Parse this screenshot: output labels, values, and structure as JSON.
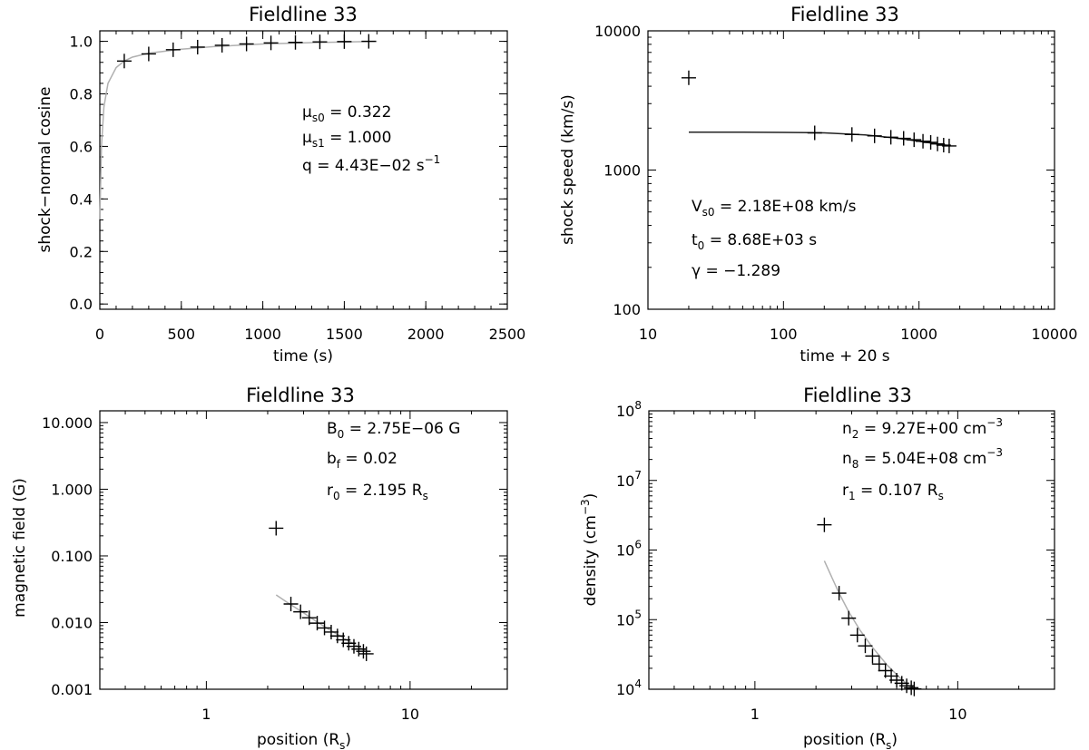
{
  "chart_data": [
    {
      "id": "cosine",
      "type": "scatter",
      "title": "Fieldline 33",
      "xlabel": "time (s)",
      "ylabel": "shock−normal cosine",
      "xscale": "linear",
      "yscale": "linear",
      "xlim": [
        0,
        2500
      ],
      "ylim": [
        -0.02,
        1.04
      ],
      "xticks": [
        0,
        500,
        1000,
        1500,
        2000,
        2500
      ],
      "xtick_labels": [
        "0",
        "500",
        "1000",
        "1500",
        "2000",
        "2500"
      ],
      "yticks": [
        0.0,
        0.2,
        0.4,
        0.6,
        0.8,
        1.0
      ],
      "ytick_labels": [
        "0.0",
        "0.2",
        "0.4",
        "0.6",
        "0.8",
        "1.0"
      ],
      "grid": false,
      "points": {
        "x": [
          150,
          300,
          450,
          600,
          750,
          900,
          1050,
          1200,
          1350,
          1500,
          1650
        ],
        "y": [
          0.925,
          0.952,
          0.968,
          0.978,
          0.985,
          0.99,
          0.994,
          0.996,
          0.998,
          0.999,
          1.0
        ]
      },
      "fit": {
        "color": "#b0b0b0",
        "x": [
          0,
          10,
          25,
          50,
          100,
          150,
          200,
          300,
          500,
          700,
          1000,
          1300,
          1700
        ],
        "y": [
          0.322,
          0.6,
          0.75,
          0.84,
          0.9,
          0.925,
          0.94,
          0.955,
          0.97,
          0.98,
          0.99,
          0.995,
          1.0
        ]
      },
      "annotations": [
        {
          "sym": "μ",
          "sub": "s0",
          "text": " =    0.322"
        },
        {
          "sym": "μ",
          "sub": "s1",
          "text": " =    1.000"
        },
        {
          "sym": "q",
          "text": " = 4.43E−02 s",
          "sup": "−1"
        }
      ]
    },
    {
      "id": "speed",
      "type": "scatter",
      "title": "Fieldline 33",
      "xlabel": "time + 20 s",
      "ylabel": "shock speed (km/s)",
      "xscale": "log",
      "yscale": "log",
      "xlim": [
        10,
        10000
      ],
      "ylim": [
        100,
        10000
      ],
      "xticks": [
        10,
        100,
        1000,
        10000
      ],
      "xtick_labels": [
        "10",
        "100",
        "1000",
        "10000"
      ],
      "yticks": [
        100,
        1000,
        10000
      ],
      "ytick_labels": [
        "100",
        "1000",
        "10000"
      ],
      "grid": false,
      "points": {
        "x": [
          20,
          170,
          320,
          470,
          620,
          770,
          920,
          1070,
          1220,
          1370,
          1520,
          1670
        ],
        "y": [
          4600,
          1850,
          1800,
          1760,
          1720,
          1690,
          1650,
          1610,
          1580,
          1540,
          1510,
          1490
        ]
      },
      "fit": {
        "color": "#222222",
        "x": [
          20,
          50,
          100,
          200,
          400,
          700,
          1000,
          1300,
          1700
        ],
        "y": [
          1870,
          1870,
          1865,
          1850,
          1790,
          1690,
          1610,
          1550,
          1490
        ]
      },
      "annotations": [
        {
          "sym": "V",
          "sub": "s0",
          "text": " = 2.18E+08 km/s"
        },
        {
          "sym": "t",
          "sub": "0",
          "text": " = 8.68E+03 s"
        },
        {
          "sym": "γ",
          "text": "  =  −1.289"
        }
      ]
    },
    {
      "id": "field",
      "type": "scatter",
      "title": "Fieldline 33",
      "xlabel": "position (R",
      "xlabel_sub": "s",
      "xlabel_tail": ")",
      "ylabel": "magnetic field (G)",
      "xscale": "log",
      "yscale": "log",
      "xlim": [
        0.3,
        30
      ],
      "ylim": [
        0.001,
        15
      ],
      "xticks": [
        1,
        10
      ],
      "xtick_labels": [
        "1",
        "10"
      ],
      "yticks": [
        0.001,
        0.01,
        0.1,
        1,
        10
      ],
      "ytick_labels": [
        "0.001",
        "0.010",
        "0.100",
        "1.000",
        "10.000"
      ],
      "grid": false,
      "points": {
        "x": [
          2.2,
          2.6,
          2.9,
          3.2,
          3.5,
          3.8,
          4.1,
          4.4,
          4.7,
          5.0,
          5.3,
          5.6,
          5.9,
          6.1
        ],
        "y": [
          0.26,
          0.019,
          0.0145,
          0.0118,
          0.0098,
          0.0083,
          0.0072,
          0.0063,
          0.0055,
          0.0049,
          0.0044,
          0.004,
          0.0037,
          0.0034
        ]
      },
      "fit": {
        "color": "#b0b0b0",
        "x": [
          2.2,
          2.5,
          3.0,
          3.5,
          4.0,
          5.0,
          6.0
        ],
        "y": [
          0.026,
          0.02,
          0.014,
          0.0102,
          0.0079,
          0.0053,
          0.0038
        ]
      },
      "annotations": [
        {
          "sym": "B",
          "sub": "0",
          "text": " = 2.75E−06 G"
        },
        {
          "sym": "b",
          "sub": "f",
          "text": " =    0.02"
        },
        {
          "sym": "r",
          "sub": "0",
          "text": " =   2.195 R",
          "tail_sub": "s"
        }
      ]
    },
    {
      "id": "density",
      "type": "scatter",
      "title": "Fieldline 33",
      "xlabel": "position (R",
      "xlabel_sub": "s",
      "xlabel_tail": ")",
      "ylabel": "density (cm",
      "ylabel_sup": "−3",
      "ylabel_tail": ")",
      "xscale": "log",
      "yscale": "log",
      "xlim": [
        0.3,
        30
      ],
      "ylim": [
        10000,
        100000000
      ],
      "xticks": [
        1,
        10
      ],
      "xtick_labels": [
        "1",
        "10"
      ],
      "yticks": [
        10000,
        100000,
        1000000,
        10000000,
        100000000
      ],
      "ytick_base": "10",
      "ytick_exps": [
        "4",
        "5",
        "6",
        "7",
        "8"
      ],
      "grid": false,
      "points": {
        "x": [
          2.2,
          2.6,
          2.9,
          3.2,
          3.5,
          3.8,
          4.1,
          4.4,
          4.7,
          5.0,
          5.3,
          5.6,
          5.9,
          6.1
        ],
        "y": [
          2300000,
          240000,
          105000,
          60000,
          42000,
          30000,
          23000,
          18500,
          15500,
          13500,
          12200,
          11200,
          10500,
          10100
        ]
      },
      "fit": {
        "color": "#b0b0b0",
        "x": [
          2.2,
          2.4,
          2.6,
          2.9,
          3.3,
          3.8,
          4.5,
          5.2,
          6.0
        ],
        "y": [
          700000,
          400000,
          240000,
          130000,
          70000,
          40000,
          22000,
          14500,
          10000
        ]
      },
      "annotations": [
        {
          "sym": "n",
          "sub": "2",
          "text": " = 9.27E+00 cm",
          "sup": "−3"
        },
        {
          "sym": "n",
          "sub": "8",
          "text": " = 5.04E+08 cm",
          "sup": "−3"
        },
        {
          "sym": "r",
          "sub": "1",
          "text": " =   0.107 R",
          "tail_sub": "s"
        }
      ]
    }
  ]
}
